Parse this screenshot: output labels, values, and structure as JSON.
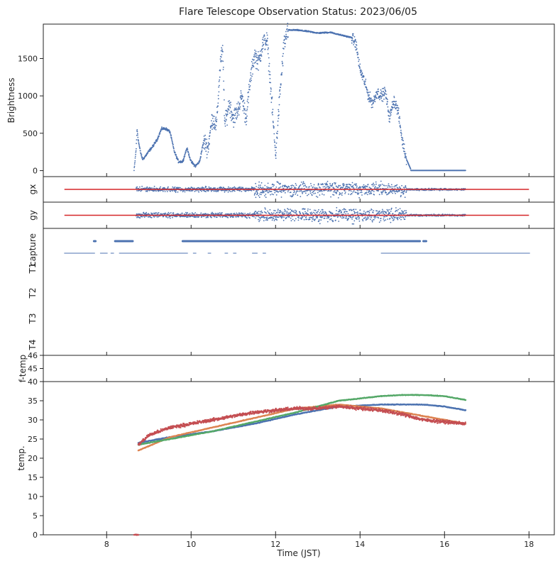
{
  "title": "Flare Telescope Observation Status: 2023/06/05",
  "colors": {
    "blue": "#4c72b0",
    "orange": "#dd8452",
    "green": "#55a868",
    "red": "#c44e52",
    "ref_line": "#d62728",
    "axis": "#222222"
  },
  "chart_data": [
    {
      "type": "scatter",
      "panel": "brightness",
      "xlabel": "",
      "ylabel": "Brightness",
      "xlim": [
        6.5,
        18.6
      ],
      "ylim": [
        -80,
        1960
      ],
      "yticks": [
        0,
        500,
        1000,
        1500
      ],
      "series": [
        {
          "color": "blue",
          "x": [
            8.65,
            8.7,
            8.72,
            8.75,
            8.8,
            8.85,
            8.9,
            9.0,
            9.1,
            9.2,
            9.3,
            9.4,
            9.5,
            9.6,
            9.7,
            9.8,
            9.9,
            10.0,
            10.1,
            10.2,
            10.3,
            10.4,
            10.5,
            10.6,
            10.7,
            10.75,
            10.8,
            10.9,
            11.0,
            11.1,
            11.2,
            11.3,
            11.4,
            11.5,
            11.6,
            11.7,
            11.8,
            11.9,
            12.0,
            12.1,
            12.2,
            12.3,
            12.5,
            12.8,
            13.0,
            13.3,
            13.5,
            13.8,
            13.9,
            14.0,
            14.1,
            14.2,
            14.3,
            14.4,
            14.5,
            14.6,
            14.7,
            14.8,
            14.9,
            15.0,
            15.1,
            15.2,
            15.5,
            16.0,
            16.5
          ],
          "y": [
            0,
            300,
            560,
            400,
            250,
            150,
            180,
            260,
            330,
            420,
            560,
            560,
            520,
            260,
            120,
            120,
            300,
            120,
            60,
            120,
            400,
            300,
            700,
            600,
            1500,
            1580,
            600,
            900,
            700,
            800,
            1000,
            700,
            1200,
            1550,
            1450,
            1700,
            1750,
            1000,
            200,
            1000,
            1700,
            1880,
            1880,
            1860,
            1840,
            1850,
            1820,
            1780,
            1700,
            1350,
            1200,
            1000,
            900,
            1050,
            1000,
            1050,
            700,
            950,
            800,
            400,
            150,
            20,
            5,
            5,
            5
          ]
        }
      ]
    },
    {
      "type": "scatter",
      "panel": "gx",
      "ylabel": "gx",
      "xlim": [
        6.5,
        18.6
      ],
      "reference_line": {
        "x": [
          7.0,
          18.0
        ],
        "y": 0,
        "color": "ref_line"
      },
      "series": [
        {
          "color": "blue",
          "x_range": [
            8.7,
            16.5
          ],
          "spread": "dense noise around 0, wider 11.5–15.0"
        }
      ]
    },
    {
      "type": "scatter",
      "panel": "gy",
      "ylabel": "gy",
      "xlim": [
        6.5,
        18.6
      ],
      "reference_line": {
        "x": [
          7.0,
          18.0
        ],
        "y": 0,
        "color": "ref_line"
      },
      "series": [
        {
          "color": "blue",
          "x_range": [
            8.7,
            16.5
          ],
          "spread": "dense noise around 0, wider 11.5–15.0"
        }
      ]
    },
    {
      "type": "scatter",
      "panel": "status",
      "yticklabels": [
        "capture",
        "T1",
        "T2",
        "T3",
        "T4"
      ],
      "xlim": [
        6.5,
        18.6
      ],
      "series": [
        {
          "label_row": "capture",
          "color": "blue",
          "segments": [
            [
              7.7,
              7.72
            ],
            [
              8.2,
              8.6
            ],
            [
              9.8,
              15.4
            ],
            [
              15.5,
              15.55
            ]
          ]
        },
        {
          "label_row": "T1",
          "color": "blue",
          "segments": [
            [
              7.0,
              7.7
            ],
            [
              7.85,
              8.0
            ],
            [
              8.1,
              8.15
            ],
            [
              8.3,
              9.9
            ],
            [
              10.05,
              10.1
            ],
            [
              10.4,
              10.45
            ],
            [
              10.8,
              10.85
            ],
            [
              11.0,
              11.05
            ],
            [
              11.45,
              11.55
            ],
            [
              11.7,
              11.75
            ],
            [
              14.5,
              18.0
            ]
          ]
        }
      ]
    },
    {
      "type": "line",
      "panel": "f-temp",
      "ylabel": "f-temp",
      "xlim": [
        6.5,
        18.6
      ],
      "ylim": [
        44,
        46
      ],
      "yticks": [
        45,
        46
      ],
      "series": []
    },
    {
      "type": "scatter",
      "panel": "temp",
      "xlabel": "Time (JST)",
      "ylabel": "temp.",
      "xlim": [
        6.5,
        18.6
      ],
      "ylim": [
        0,
        40
      ],
      "xticks": [
        8,
        10,
        12,
        14,
        16,
        18
      ],
      "yticks": [
        0,
        5,
        10,
        15,
        20,
        25,
        30,
        35,
        40
      ],
      "series": [
        {
          "color": "blue",
          "x": [
            8.75,
            9.5,
            10.5,
            11.5,
            12.5,
            13.5,
            14.5,
            15.0,
            15.5,
            16.0,
            16.5
          ],
          "y": [
            24,
            25.5,
            27,
            29,
            31.5,
            33.5,
            34,
            34,
            34,
            33.5,
            32.5
          ]
        },
        {
          "color": "orange",
          "x": [
            8.75,
            9.5,
            10.5,
            11.5,
            12.5,
            13.5,
            14.5,
            15.0,
            15.5,
            16.0,
            16.5
          ],
          "y": [
            22,
            25.5,
            28,
            30.5,
            33,
            34,
            33,
            32,
            31,
            30,
            29
          ]
        },
        {
          "color": "green",
          "x": [
            8.75,
            9.5,
            10.5,
            11.5,
            12.5,
            13.5,
            14.5,
            15.0,
            15.5,
            16.0,
            16.5
          ],
          "y": [
            23.5,
            25,
            27,
            29.5,
            32,
            35,
            36.2,
            36.5,
            36.5,
            36.2,
            35.2
          ]
        },
        {
          "color": "red",
          "x": [
            8.75,
            9.0,
            9.5,
            10.0,
            10.5,
            11.0,
            11.5,
            12.0,
            12.5,
            13.0,
            13.5,
            14.0,
            14.5,
            15.0,
            15.5,
            16.0,
            16.5
          ],
          "y": [
            23.5,
            26,
            28,
            29,
            30,
            31,
            32,
            32.5,
            33,
            33,
            33.5,
            33,
            32.5,
            31.5,
            30,
            29.5,
            29
          ]
        },
        {
          "color": "red",
          "x": [
            8.65,
            8.75
          ],
          "y": [
            0,
            0
          ]
        }
      ]
    }
  ]
}
